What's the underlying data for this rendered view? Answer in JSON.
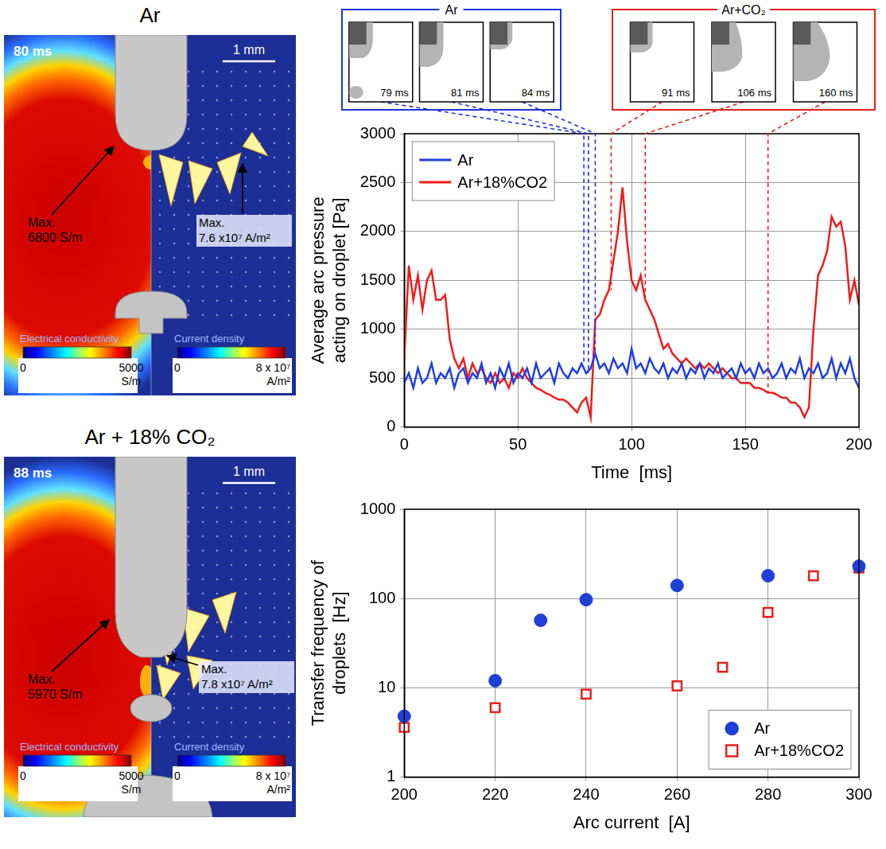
{
  "panels": [
    {
      "title": "Ar",
      "time": "80 ms",
      "scale": "1 mm",
      "conductivity_max": [
        "Max.",
        "6800 S/m"
      ],
      "current_max": [
        "Max.",
        "7.6 x10⁷ A/m²"
      ],
      "conductivity_bar": {
        "title": "Electrical conductivity",
        "min": "0",
        "max": [
          "5000",
          "S/m"
        ]
      },
      "current_bar": {
        "title": "Current density",
        "min": "0",
        "max": [
          "8 x 10⁷",
          "A/m²"
        ]
      }
    },
    {
      "title": "Ar + 18% CO₂",
      "time": "88 ms",
      "scale": "1 mm",
      "conductivity_max": [
        "Max.",
        "5970 S/m"
      ],
      "current_max": [
        "Max.",
        "7.8 x10⁷ A/m²"
      ],
      "conductivity_bar": {
        "title": "Electrical conductivity",
        "min": "0",
        "max": [
          "5000",
          "S/m"
        ]
      },
      "current_bar": {
        "title": "Current density",
        "min": "0",
        "max": [
          "8 x 10⁷",
          "A/m²"
        ]
      }
    }
  ],
  "chart_data": [
    {
      "type": "line",
      "x_label": "Time  [ms]",
      "y_label": [
        "Average arc pressure",
        "acting on droplet [Pa]"
      ],
      "x": [
        0,
        2,
        4,
        6,
        8,
        10,
        12,
        14,
        16,
        18,
        20,
        22,
        24,
        26,
        28,
        30,
        32,
        34,
        36,
        38,
        40,
        42,
        44,
        46,
        48,
        50,
        52,
        54,
        56,
        58,
        60,
        62,
        64,
        66,
        68,
        70,
        72,
        74,
        76,
        78,
        80,
        82,
        84,
        86,
        88,
        90,
        92,
        94,
        96,
        98,
        100,
        102,
        104,
        106,
        108,
        110,
        112,
        114,
        116,
        118,
        120,
        122,
        124,
        126,
        128,
        130,
        132,
        134,
        136,
        138,
        140,
        142,
        144,
        146,
        148,
        150,
        152,
        154,
        156,
        158,
        160,
        162,
        164,
        166,
        168,
        170,
        172,
        174,
        176,
        178,
        180,
        182,
        184,
        186,
        188,
        190,
        192,
        194,
        196,
        198,
        200
      ],
      "series": [
        {
          "name": "Ar",
          "color": "#1f3fe0",
          "line_style": "solid",
          "values": [
            450,
            550,
            400,
            600,
            450,
            500,
            650,
            450,
            550,
            500,
            600,
            400,
            550,
            600,
            450,
            550,
            500,
            650,
            450,
            550,
            400,
            600,
            500,
            650,
            450,
            550,
            500,
            600,
            450,
            650,
            500,
            550,
            600,
            450,
            650,
            550,
            500,
            600,
            550,
            650,
            550,
            600,
            750,
            600,
            650,
            550,
            700,
            600,
            650,
            550,
            800,
            600,
            650,
            550,
            700,
            600,
            550,
            650,
            500,
            600,
            550,
            650,
            500,
            600,
            550,
            650,
            500,
            600,
            550,
            650,
            500,
            550,
            600,
            500,
            650,
            550,
            600,
            500,
            650,
            550,
            600,
            500,
            550,
            650,
            500,
            600,
            550,
            700,
            500,
            600,
            550,
            650,
            500,
            550,
            700,
            500,
            650,
            550,
            700,
            500,
            400
          ]
        },
        {
          "name": "Ar+18%CO2",
          "color": "#ee1c1c",
          "line_style": "solid",
          "values": [
            700,
            1650,
            1300,
            1550,
            1200,
            1500,
            1600,
            1300,
            1300,
            1350,
            900,
            700,
            600,
            700,
            500,
            650,
            550,
            600,
            500,
            450,
            550,
            450,
            500,
            400,
            550,
            500,
            600,
            500,
            450,
            400,
            380,
            350,
            330,
            300,
            280,
            280,
            250,
            200,
            150,
            250,
            300,
            100,
            1100,
            1150,
            1300,
            1400,
            1700,
            2000,
            2450,
            1900,
            1500,
            1400,
            1550,
            1300,
            1200,
            1100,
            950,
            800,
            850,
            750,
            700,
            650,
            700,
            650,
            600,
            650,
            600,
            650,
            600,
            550,
            600,
            550,
            500,
            500,
            450,
            450,
            450,
            400,
            400,
            380,
            350,
            350,
            330,
            300,
            300,
            250,
            250,
            200,
            100,
            200,
            1000,
            1550,
            1650,
            1800,
            2150,
            2050,
            2100,
            1850,
            1300,
            1500,
            1250
          ]
        }
      ],
      "xlim": [
        0,
        200
      ],
      "xticks": [
        0,
        50,
        100,
        150,
        200
      ],
      "ylim": [
        0,
        3000
      ],
      "yticks": [
        0,
        500,
        1000,
        1500,
        2000,
        2500,
        3000
      ],
      "grid": true,
      "legend": "upper left",
      "snapshots": [
        {
          "title": "Ar",
          "color": "#2233dd",
          "series": "Ar",
          "frames": [
            {
              "time": 79,
              "label": "79 ms"
            },
            {
              "time": 81,
              "label": "81 ms"
            },
            {
              "time": 84,
              "label": "84 ms"
            }
          ]
        },
        {
          "title": "Ar+CO₂",
          "color": "#e02020",
          "series": "Ar+18%CO2",
          "frames": [
            {
              "time": 91,
              "label": "91 ms"
            },
            {
              "time": 106,
              "label": "106 ms"
            },
            {
              "time": 160,
              "label": "160 ms"
            }
          ]
        }
      ]
    },
    {
      "type": "scatter",
      "x_label": "Arc current  [A]",
      "y_label": [
        "Transfer frequency of",
        "droplets  [Hz]"
      ],
      "series": [
        {
          "name": "Ar",
          "color": "#1f3fd6",
          "marker": "circle",
          "x": [
            200,
            220,
            230,
            240,
            260,
            280,
            300
          ],
          "values": [
            4.8,
            12,
            57,
            97,
            140,
            180,
            230
          ]
        },
        {
          "name": "Ar+18%CO2",
          "color": "#e8201c",
          "marker": "square_open",
          "x": [
            200,
            220,
            240,
            260,
            270,
            280,
            290,
            300
          ],
          "values": [
            3.6,
            6,
            8.5,
            10.5,
            17,
            70,
            180,
            220
          ]
        }
      ],
      "xlim": [
        200,
        300
      ],
      "xticks": [
        200,
        220,
        240,
        260,
        280,
        300
      ],
      "ylim": [
        1,
        1000
      ],
      "yticks": [
        1,
        10,
        100,
        1000
      ],
      "log": "y",
      "grid": true,
      "legend": "lower right"
    }
  ]
}
